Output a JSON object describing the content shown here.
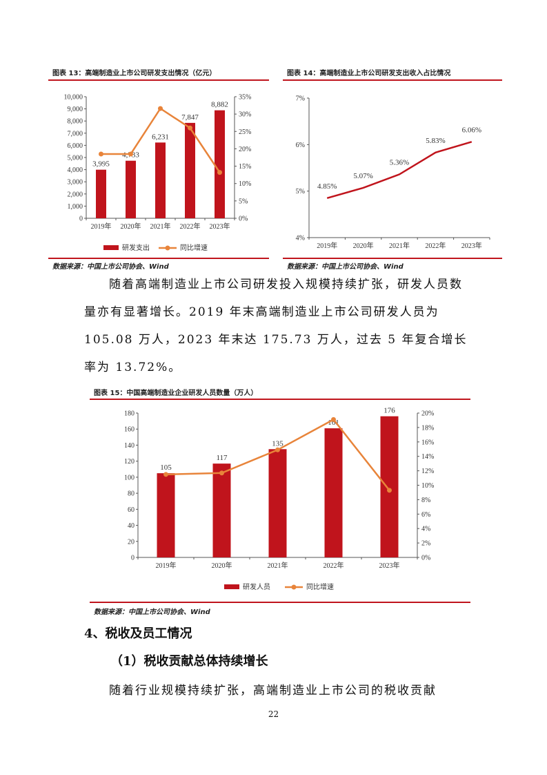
{
  "figures": [
    {
      "title": "图表 13：高端制造业上市公司研发支出情况（亿元）",
      "source": "数据来源：中国上市公司协会、Wind",
      "chart_data": {
        "type": "bar",
        "categories": [
          "2019年",
          "2020年",
          "2021年",
          "2022年",
          "2023年"
        ],
        "series": [
          {
            "name": "研发支出",
            "type": "bar",
            "axis": "left",
            "values": [
              3995,
              4733,
              6231,
              7847,
              8882
            ],
            "color": "#c0141c"
          },
          {
            "name": "同比增速",
            "type": "line",
            "axis": "right",
            "values": [
              18.5,
              18.5,
              31.6,
              26.0,
              13.2
            ],
            "color": "#e8843a"
          }
        ],
        "data_labels": [
          "3,995",
          "4,733",
          "6,231",
          "7,847",
          "8,882"
        ],
        "left_ticks": [
          "0",
          "1,000",
          "2,000",
          "3,000",
          "4,000",
          "5,000",
          "6,000",
          "7,000",
          "8,000",
          "9,000",
          "10,000"
        ],
        "right_ticks": [
          "0%",
          "5%",
          "10%",
          "15%",
          "20%",
          "25%",
          "30%",
          "35%"
        ],
        "ylim_left": [
          0,
          10000
        ],
        "ylim_right": [
          0,
          35
        ],
        "legend": [
          "研发支出",
          "同比增速"
        ],
        "legend_position": "bottom"
      }
    },
    {
      "title": "图表 14：高端制造业上市公司研发支出收入占比情况",
      "source": "数据来源：中国上市公司协会、Wind",
      "chart_data": {
        "type": "line",
        "categories": [
          "2019年",
          "2020年",
          "2021年",
          "2022年",
          "2023年"
        ],
        "series": [
          {
            "values": [
              4.85,
              5.07,
              5.36,
              5.83,
              6.06
            ],
            "color": "#c0141c"
          }
        ],
        "data_labels": [
          "4.85%",
          "5.07%",
          "5.36%",
          "5.83%",
          "6.06%"
        ],
        "y_ticks": [
          "4%",
          "5%",
          "6%",
          "7%"
        ],
        "ylim": [
          4,
          7
        ]
      }
    },
    {
      "title": "图表 15：中国高端制造业企业研发人员数量（万人）",
      "source": "数据来源：中国上市公司协会、Wind",
      "chart_data": {
        "type": "bar",
        "categories": [
          "2019年",
          "2020年",
          "2021年",
          "2022年",
          "2023年"
        ],
        "series": [
          {
            "name": "研发人员",
            "type": "bar",
            "axis": "left",
            "values": [
              105,
              117,
              135,
              161,
              176
            ],
            "color": "#c0141c"
          },
          {
            "name": "同比增速",
            "type": "line",
            "axis": "right",
            "values": [
              11.5,
              11.7,
              14.9,
              19.1,
              9.3
            ],
            "color": "#e8843a"
          }
        ],
        "data_labels": [
          "105",
          "117",
          "135",
          "161",
          "176"
        ],
        "left_ticks": [
          "0",
          "20",
          "40",
          "60",
          "80",
          "100",
          "120",
          "140",
          "160",
          "180"
        ],
        "right_ticks": [
          "0%",
          "2%",
          "4%",
          "6%",
          "8%",
          "10%",
          "12%",
          "14%",
          "16%",
          "18%",
          "20%"
        ],
        "ylim_left": [
          0,
          180
        ],
        "ylim_right": [
          0,
          20
        ],
        "legend": [
          "研发人员",
          "同比增速"
        ],
        "legend_position": "bottom"
      }
    }
  ],
  "paragraph1": "随着高端制造业上市公司研发投入规模持续扩张，研发人员数量亦有显著增长。2019 年末高端制造业上市公司研发人员为 105.08 万人，2023 年末达 175.73 万人，过去 5 年复合增长率为 13.72%。",
  "section_heading": "4、税收及员工情况",
  "subsection_heading": "（1）税收贡献总体持续增长",
  "paragraph2": "随着行业规模持续扩张，高端制造业上市公司的税收贡献",
  "page_number": "22"
}
